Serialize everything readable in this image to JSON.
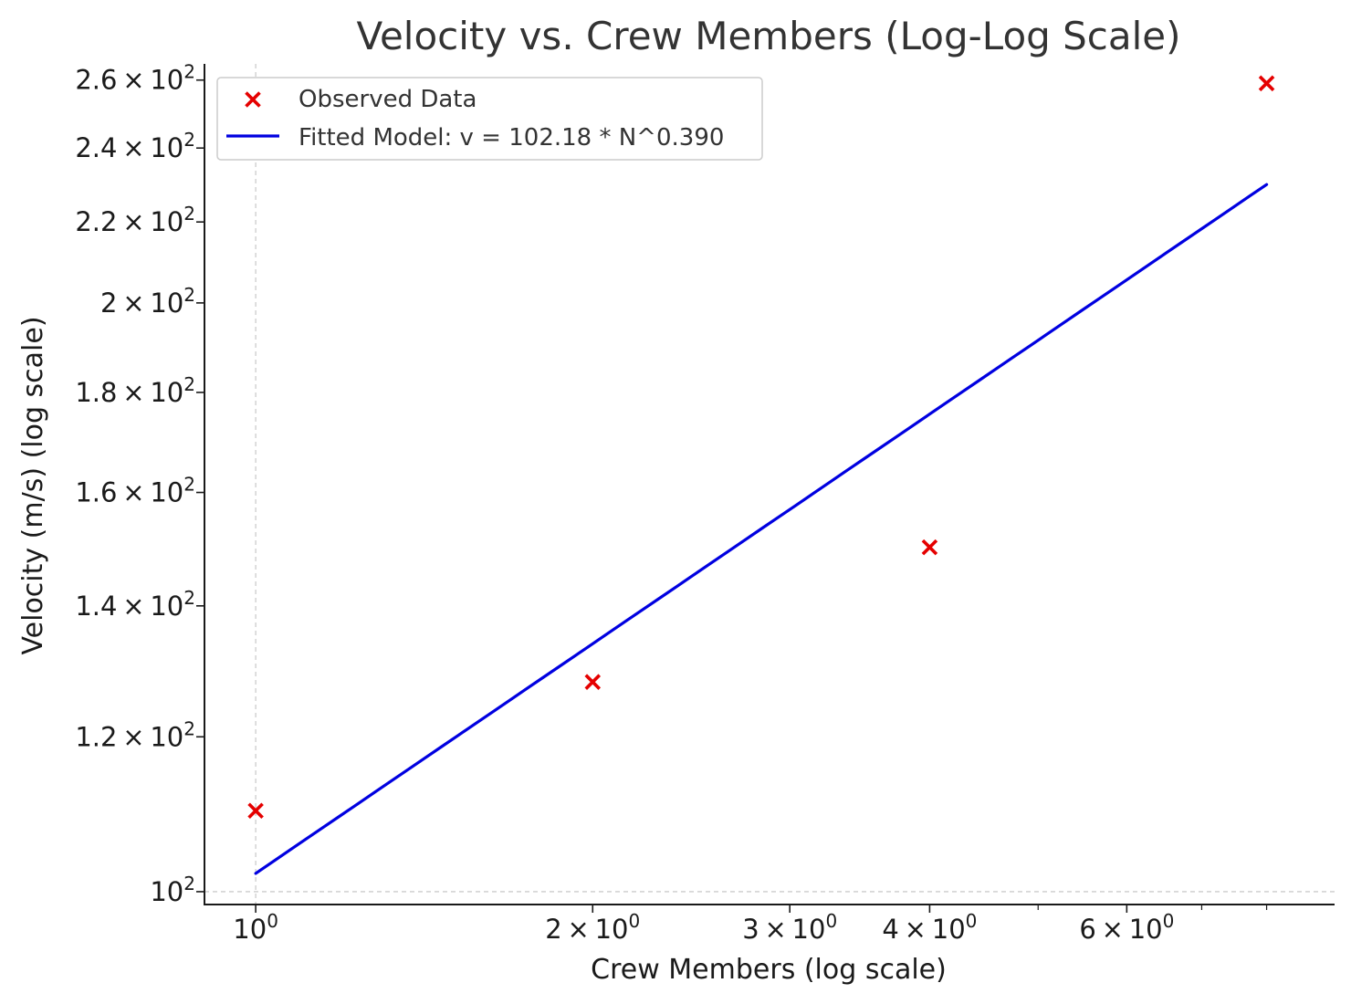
{
  "chart_data": {
    "type": "scatter",
    "title": "Velocity vs. Crew Members (Log-Log Scale)",
    "xlabel": "Crew Members (log scale)",
    "ylabel": "Velocity (m/s) (log scale)",
    "x_scale": "log",
    "y_scale": "log",
    "xlim": [
      0.9,
      9.2
    ],
    "ylim": [
      98.5,
      265
    ],
    "grid": "dashed lines at x = 10^0 and y = 10^2",
    "legend_position": "top-left",
    "x_ticks": [
      {
        "value": 1,
        "mant": "",
        "exp": "0"
      },
      {
        "value": 2,
        "mant": "2",
        "exp": "0"
      },
      {
        "value": 3,
        "mant": "3",
        "exp": "0"
      },
      {
        "value": 4,
        "mant": "4",
        "exp": "0"
      },
      {
        "value": 6,
        "mant": "6",
        "exp": "0"
      }
    ],
    "x_minor_ticks": [
      5,
      7,
      8
    ],
    "y_ticks": [
      {
        "value": 100,
        "mant": "",
        "exp": "2"
      },
      {
        "value": 120,
        "mant": "1.2",
        "exp": "2"
      },
      {
        "value": 140,
        "mant": "1.4",
        "exp": "2"
      },
      {
        "value": 160,
        "mant": "1.6",
        "exp": "2"
      },
      {
        "value": 180,
        "mant": "1.8",
        "exp": "2"
      },
      {
        "value": 200,
        "mant": "2",
        "exp": "2"
      },
      {
        "value": 220,
        "mant": "2.2",
        "exp": "2"
      },
      {
        "value": 240,
        "mant": "2.4",
        "exp": "2"
      },
      {
        "value": 260,
        "mant": "2.6",
        "exp": "2"
      }
    ],
    "series": [
      {
        "name": "Observed Data",
        "kind": "scatter",
        "marker": "x",
        "color": "#e50000",
        "x": [
          1,
          2,
          4,
          8
        ],
        "y": [
          110,
          128,
          150,
          259
        ]
      },
      {
        "name": "Fitted Model: v = 102.18 * N^0.390",
        "kind": "line",
        "color": "#0000e0",
        "coefficient": 102.18,
        "exponent": 0.39,
        "x_range": [
          1,
          8
        ]
      }
    ]
  }
}
